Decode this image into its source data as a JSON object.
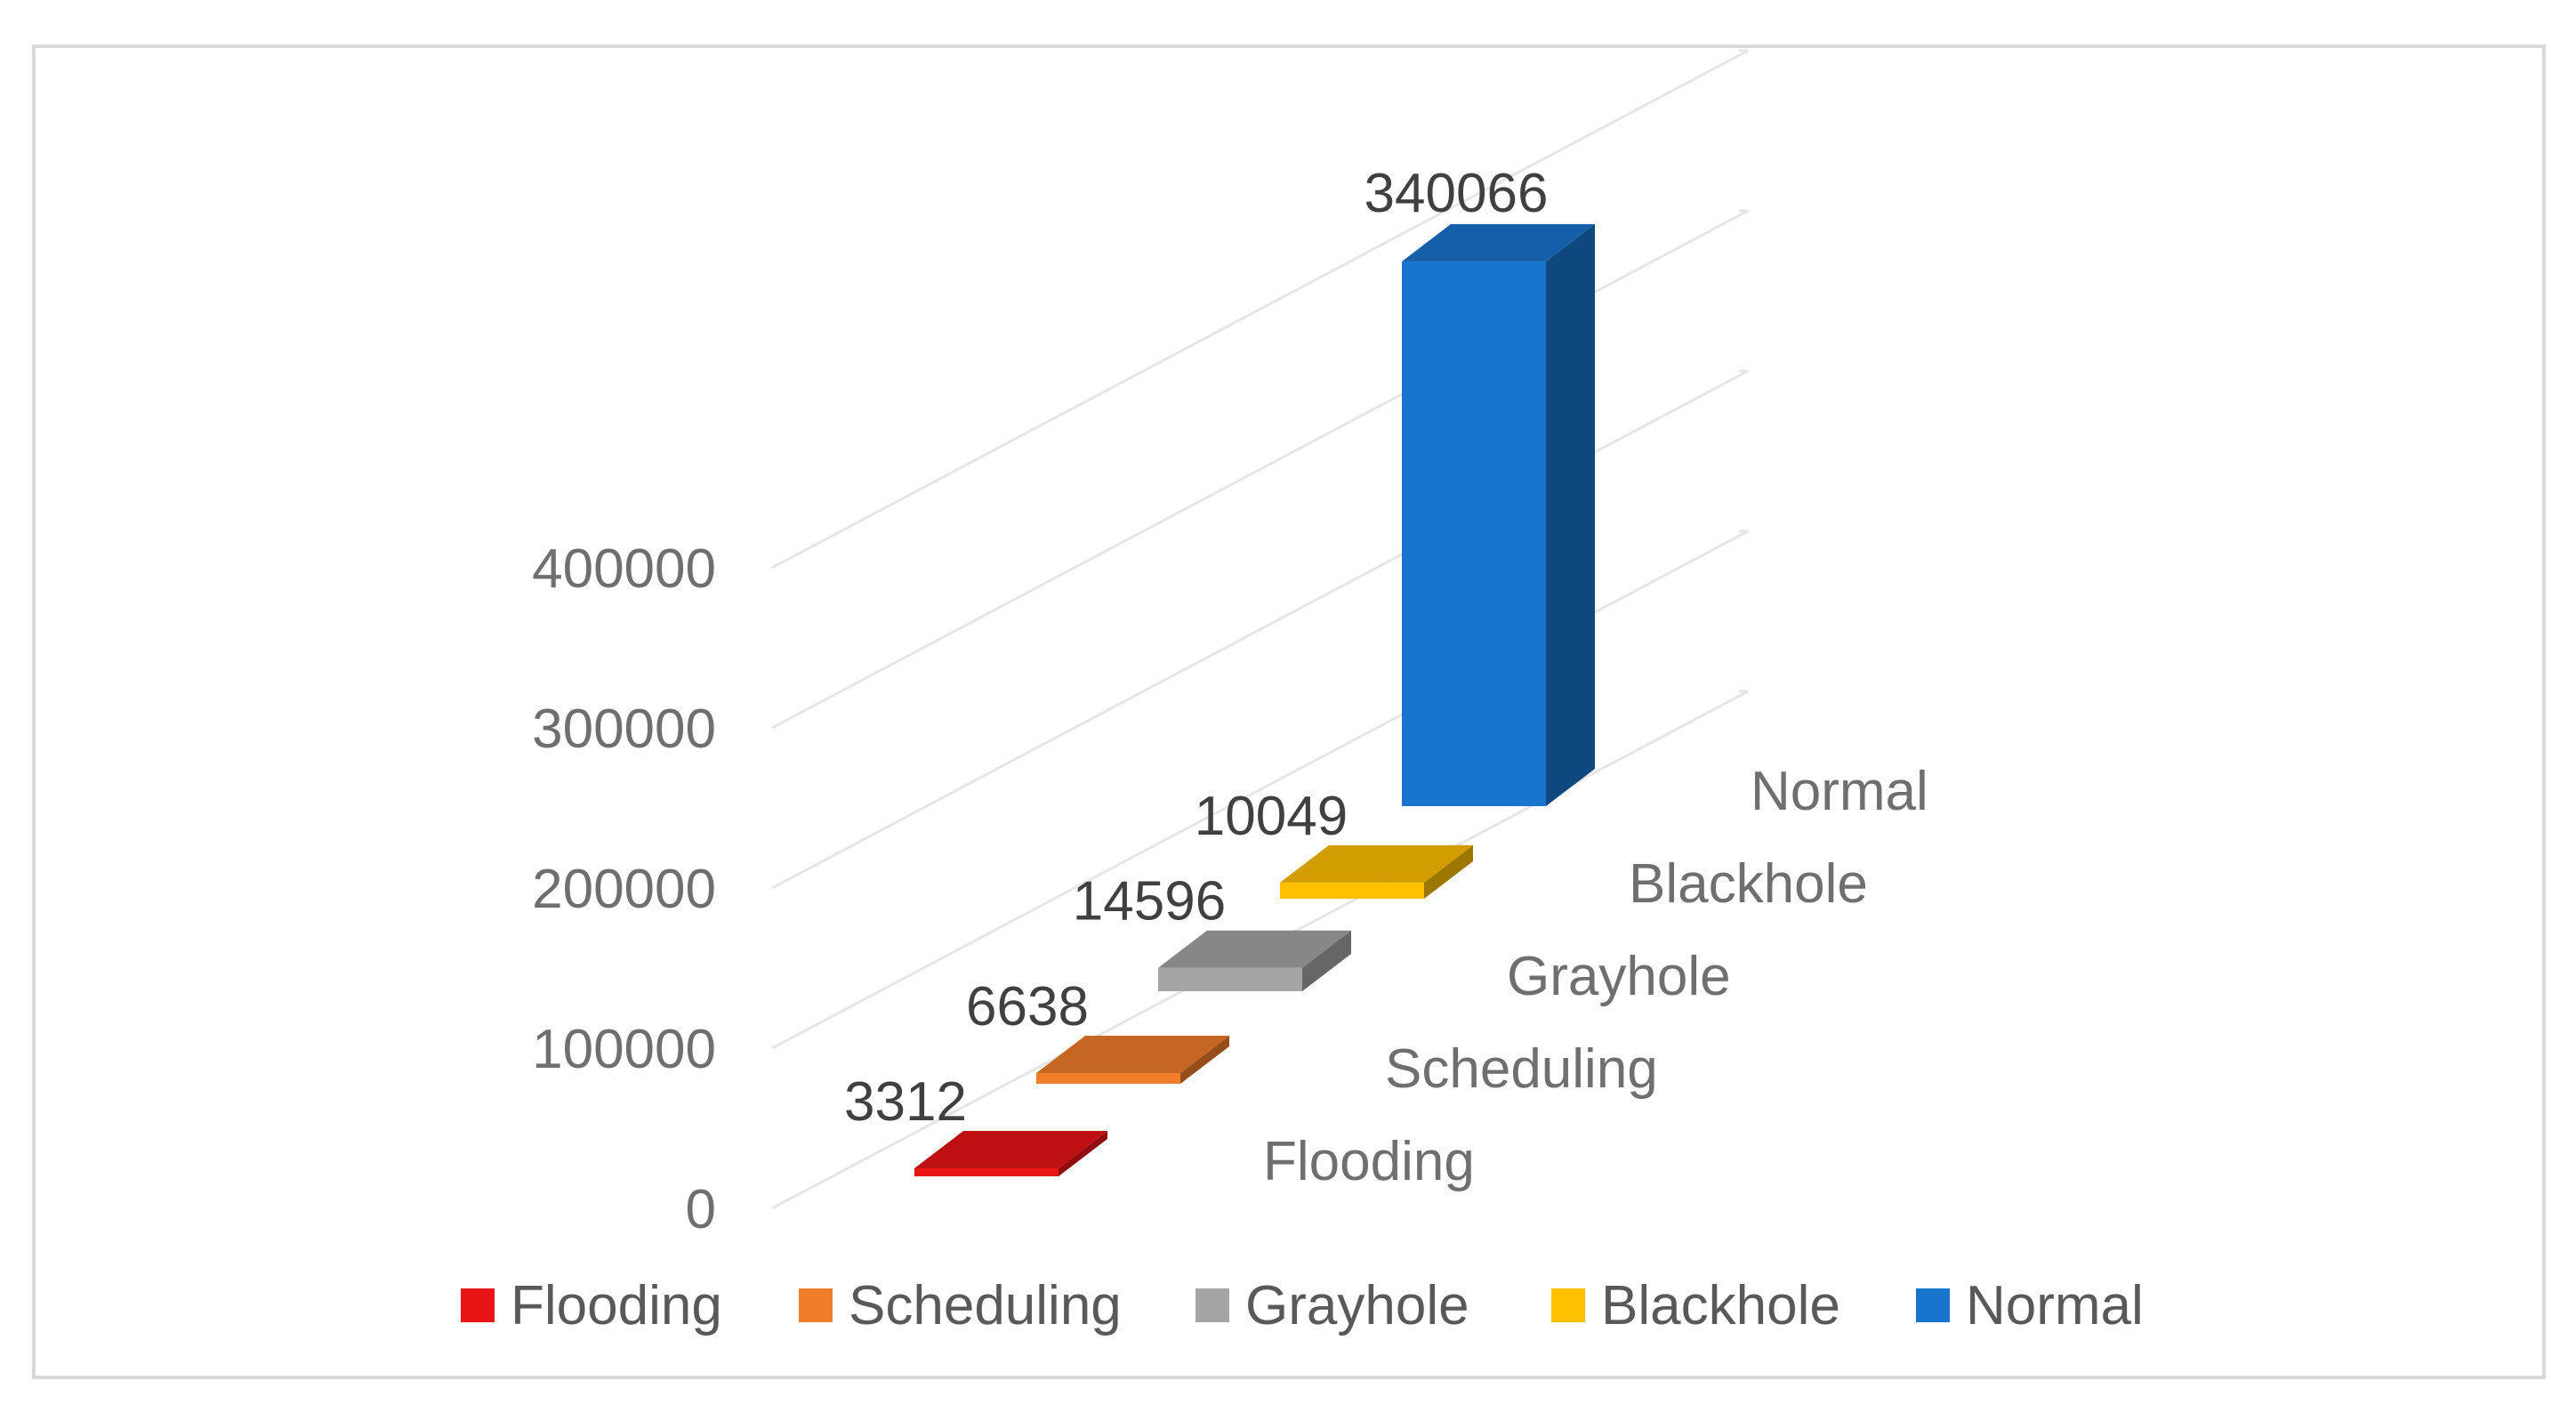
{
  "chart_data": {
    "type": "bar",
    "title": "",
    "xlabel": "",
    "ylabel": "",
    "ylim": [
      0,
      400000
    ],
    "yticks": [
      "0",
      "100000",
      "200000",
      "300000",
      "400000"
    ],
    "categories": [
      "Flooding",
      "Scheduling",
      "Grayhole",
      "Blackhole",
      "Normal"
    ],
    "values": [
      3312,
      6638,
      14596,
      10049,
      340066
    ],
    "data_labels": [
      "3312",
      "6638",
      "14596",
      "10049",
      "340066"
    ],
    "colors": [
      "#e81416",
      "#f07d2a",
      "#a5a5a5",
      "#ffc000",
      "#1874cd"
    ],
    "legend": {
      "position": "bottom",
      "entries": [
        "Flooding",
        "Scheduling",
        "Grayhole",
        "Blackhole",
        "Normal"
      ]
    },
    "grid": true,
    "style": "3d-column"
  }
}
